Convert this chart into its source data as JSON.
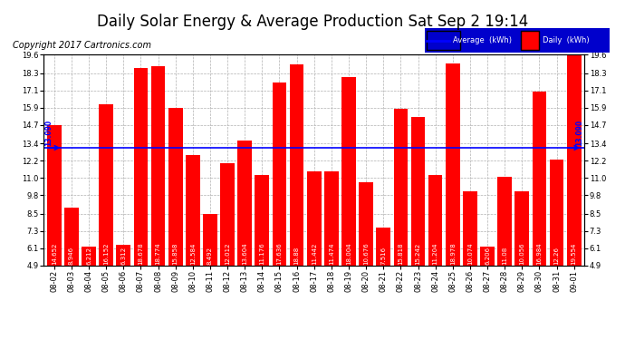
{
  "title": "Daily Solar Energy & Average Production Sat Sep 2 19:14",
  "copyright": "Copyright 2017 Cartronics.com",
  "categories": [
    "08-02",
    "08-03",
    "08-04",
    "08-05",
    "08-06",
    "08-07",
    "08-08",
    "08-09",
    "08-10",
    "08-11",
    "08-12",
    "08-13",
    "08-14",
    "08-15",
    "08-16",
    "08-17",
    "08-18",
    "08-19",
    "08-20",
    "08-21",
    "08-22",
    "08-23",
    "08-24",
    "08-25",
    "08-26",
    "08-27",
    "08-28",
    "08-29",
    "08-30",
    "08-31",
    "09-01"
  ],
  "values": [
    14.652,
    8.946,
    6.212,
    16.152,
    6.312,
    18.678,
    18.774,
    15.858,
    12.584,
    8.492,
    12.012,
    13.604,
    11.176,
    17.636,
    18.88,
    11.442,
    11.474,
    18.004,
    10.676,
    7.516,
    15.818,
    15.242,
    11.204,
    18.978,
    10.074,
    6.206,
    11.08,
    10.056,
    16.984,
    12.26,
    19.554
  ],
  "average": 13.09,
  "bar_color": "#ff0000",
  "average_color": "#0000ff",
  "background_color": "#ffffff",
  "plot_bg_color": "#ffffff",
  "grid_color": "#b0b0b0",
  "ylim": [
    4.9,
    19.6
  ],
  "yticks": [
    4.9,
    6.1,
    7.3,
    8.5,
    9.8,
    11.0,
    12.2,
    13.4,
    14.7,
    15.9,
    17.1,
    18.3,
    19.6
  ],
  "legend_average_label": "Average  (kWh)",
  "legend_daily_label": "Daily  (kWh)",
  "avg_label": "13.090",
  "title_fontsize": 12,
  "tick_fontsize": 6,
  "copyright_fontsize": 7,
  "value_fontsize": 5
}
